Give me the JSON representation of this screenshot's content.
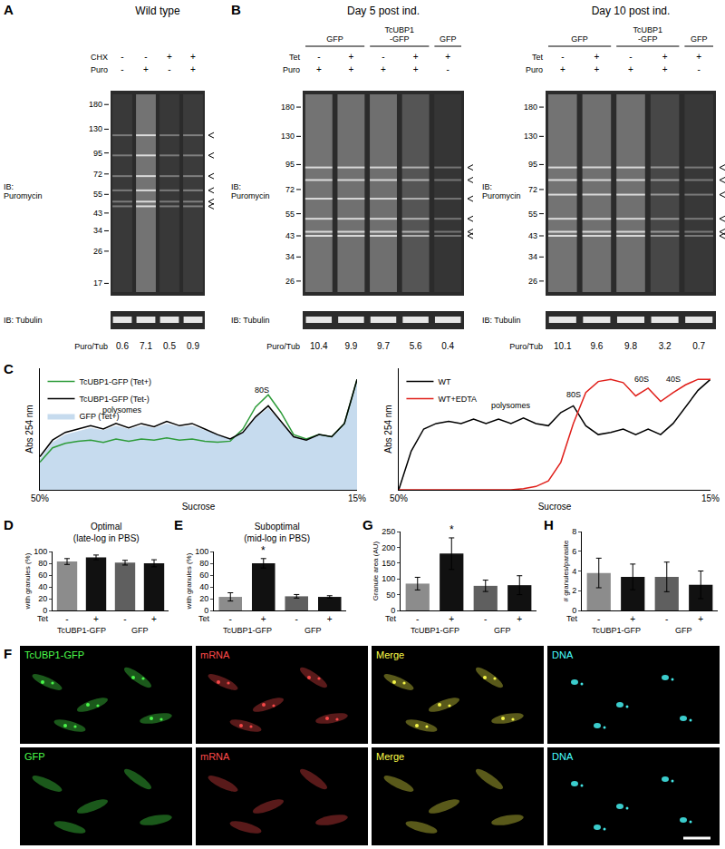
{
  "chart_data": [
    {
      "panel": "C",
      "type": "line",
      "x": [
        0,
        0.04,
        0.08,
        0.12,
        0.16,
        0.2,
        0.24,
        0.28,
        0.32,
        0.36,
        0.4,
        0.44,
        0.48,
        0.52,
        0.56,
        0.6,
        0.64,
        0.68,
        0.72,
        0.76,
        0.8,
        0.84,
        0.88,
        0.92,
        0.96,
        1
      ],
      "series": [
        {
          "name": "TcUBP1-GFP (Tet+)",
          "color": "#2e9c3a",
          "values": [
            0.25,
            0.38,
            0.42,
            0.44,
            0.45,
            0.43,
            0.46,
            0.44,
            0.46,
            0.45,
            0.47,
            0.45,
            0.46,
            0.44,
            0.43,
            0.44,
            0.55,
            0.75,
            0.86,
            0.7,
            0.5,
            0.46,
            0.5,
            0.48,
            0.6,
            1.0
          ]
        },
        {
          "name": "TcUBP1-GFP (Tet-)",
          "color": "#000000",
          "values": [
            0.3,
            0.45,
            0.52,
            0.55,
            0.58,
            0.55,
            0.6,
            0.56,
            0.6,
            0.57,
            0.62,
            0.58,
            0.6,
            0.55,
            0.5,
            0.46,
            0.52,
            0.66,
            0.76,
            0.62,
            0.48,
            0.45,
            0.5,
            0.48,
            0.6,
            1.0
          ]
        },
        {
          "name": "GFP (Tet+)",
          "color": "#c6dbee",
          "type": "area",
          "values": [
            0.28,
            0.43,
            0.5,
            0.53,
            0.56,
            0.54,
            0.58,
            0.55,
            0.58,
            0.56,
            0.6,
            0.57,
            0.58,
            0.54,
            0.5,
            0.46,
            0.52,
            0.65,
            0.74,
            0.61,
            0.48,
            0.45,
            0.5,
            0.48,
            0.6,
            1.0
          ]
        }
      ],
      "xlabel": "Sucrose",
      "ylabel": "Abs 254 nm",
      "xlim": [
        0,
        1
      ],
      "xticks": [
        {
          "value": 0,
          "label": "50%"
        },
        {
          "value": 1,
          "label": "15%"
        }
      ],
      "ylim": [
        0,
        1.1
      ],
      "tick_labels": "x",
      "legend": "top-left",
      "annotations": [
        {
          "text": "polysomes",
          "x": 0.26,
          "y": 0.72
        },
        {
          "text": "80S",
          "x": 0.7,
          "y": 0.9
        }
      ]
    },
    {
      "type": "line",
      "x": [
        0,
        0.04,
        0.08,
        0.12,
        0.16,
        0.2,
        0.24,
        0.28,
        0.32,
        0.36,
        0.4,
        0.44,
        0.48,
        0.52,
        0.56,
        0.6,
        0.64,
        0.68,
        0.72,
        0.76,
        0.8,
        0.84,
        0.88,
        0.92,
        0.96,
        1
      ],
      "series": [
        {
          "name": "WT",
          "color": "#000000",
          "values": [
            0.0,
            0.35,
            0.55,
            0.6,
            0.62,
            0.6,
            0.64,
            0.6,
            0.64,
            0.6,
            0.65,
            0.6,
            0.58,
            0.7,
            0.76,
            0.58,
            0.5,
            0.52,
            0.55,
            0.5,
            0.55,
            0.5,
            0.6,
            0.75,
            0.9,
            1.0
          ]
        },
        {
          "name": "WT+EDTA",
          "color": "#e0201b",
          "values": [
            0,
            0,
            0,
            0,
            0,
            0,
            0,
            0,
            0,
            0,
            0.01,
            0.03,
            0.08,
            0.25,
            0.6,
            0.88,
            0.98,
            1.0,
            0.97,
            0.85,
            0.92,
            0.8,
            0.88,
            0.95,
            1.0,
            1.0
          ]
        }
      ],
      "xlabel": "Sucrose",
      "ylabel": "Abs 254 nm",
      "xlim": [
        0,
        1
      ],
      "xticks": [
        {
          "value": 0,
          "label": "50%"
        },
        {
          "value": 1,
          "label": "15%"
        }
      ],
      "ylim": [
        0,
        1.1
      ],
      "tick_labels": "x",
      "legend": "top-left",
      "annotations": [
        {
          "text": "polysomes",
          "x": 0.36,
          "y": 0.76
        },
        {
          "text": "80S",
          "x": 0.56,
          "y": 0.86
        },
        {
          "text": "60S",
          "x": 0.78,
          "y": 1.0
        },
        {
          "text": "40S",
          "x": 0.88,
          "y": 1.0
        }
      ]
    },
    {
      "panel": "D",
      "type": "bar",
      "title": "Optimal\n(late-log in PBS)",
      "ylabel": "with granules (%)",
      "xlabel": "Tet",
      "categories": [
        "-",
        "+",
        "-",
        "+"
      ],
      "groups": [
        "TcUBP1-GFP",
        "GFP"
      ],
      "values": [
        83,
        90,
        81,
        80
      ],
      "errors": [
        5,
        4,
        4,
        6
      ],
      "colors": [
        "#8c8c8c",
        "#111111",
        "#5f5f5f",
        "#111111"
      ],
      "ylim": [
        0,
        100
      ],
      "yticks": [
        0,
        20,
        40,
        60,
        80,
        100
      ]
    },
    {
      "panel": "E",
      "type": "bar",
      "title": "Suboptimal\n(mid-log in PBS)",
      "ylabel": "with granules (%)",
      "xlabel": "Tet",
      "categories": [
        "-",
        "+",
        "-",
        "+"
      ],
      "groups": [
        "TcUBP1-GFP",
        "GFP"
      ],
      "values": [
        23,
        80,
        24,
        23
      ],
      "errors": [
        7,
        8,
        3,
        2
      ],
      "colors": [
        "#8c8c8c",
        "#111111",
        "#5f5f5f",
        "#111111"
      ],
      "ylim": [
        0,
        100
      ],
      "yticks": [
        0,
        20,
        40,
        60,
        80,
        100
      ],
      "annotations": [
        {
          "text": "*",
          "index": 1
        }
      ]
    },
    {
      "panel": "G",
      "type": "bar",
      "ylabel": "Granule area (AU)",
      "xlabel": "Tet",
      "categories": [
        "-",
        "+",
        "-",
        "+"
      ],
      "groups": [
        "TcUBP1-GFP",
        "GFP"
      ],
      "values": [
        85,
        180,
        78,
        80
      ],
      "errors": [
        20,
        50,
        18,
        30
      ],
      "colors": [
        "#8c8c8c",
        "#111111",
        "#5f5f5f",
        "#111111"
      ],
      "ylim": [
        0,
        250
      ],
      "yticks": [
        0,
        50,
        100,
        150,
        200,
        250
      ],
      "annotations": [
        {
          "text": "*",
          "index": 1
        }
      ]
    },
    {
      "panel": "H",
      "type": "bar",
      "ylabel": "# granules/parasite",
      "xlabel": "Tet",
      "categories": [
        "-",
        "+",
        "-",
        "+"
      ],
      "groups": [
        "TcUBP1-GFP",
        "GFP"
      ],
      "values": [
        3.8,
        3.4,
        3.4,
        2.6
      ],
      "errors": [
        1.5,
        1.3,
        1.5,
        1.4
      ],
      "colors": [
        "#8c8c8c",
        "#111111",
        "#5f5f5f",
        "#111111"
      ],
      "ylim": [
        0,
        8
      ],
      "yticks": [
        0,
        2,
        4,
        6,
        8
      ]
    }
  ],
  "blots": [
    {
      "panel": "A",
      "title": "Wild type",
      "rows": [
        {
          "label": "CHX",
          "values": [
            "-",
            "-",
            "+",
            "+"
          ]
        },
        {
          "label": "Puro",
          "values": [
            "-",
            "+",
            "-",
            "+"
          ]
        }
      ],
      "markers": [
        180,
        130,
        95,
        72,
        55,
        43,
        34,
        26,
        17
      ],
      "arrowheads": [
        120,
        92,
        70,
        58,
        50,
        47
      ],
      "probe": "IB:\nPuromycin",
      "loading": "IB: Tubulin",
      "ratio_label": "Puro/Tub",
      "ratios": [
        0.6,
        7.1,
        0.5,
        0.9
      ]
    },
    {
      "panel": "B",
      "title": "Day 5 post ind.",
      "groups": [
        {
          "label": "GFP",
          "lanes": 2
        },
        {
          "label": "TcUBP1\n-GFP",
          "lanes": 2
        },
        {
          "label": "GFP",
          "lanes": 1
        }
      ],
      "rows": [
        {
          "label": "Tet",
          "values": [
            "-",
            "+",
            "-",
            "+",
            "+"
          ]
        },
        {
          "label": "Puro",
          "values": [
            "+",
            "+",
            "+",
            "+",
            "-"
          ]
        }
      ],
      "markers": [
        180,
        130,
        95,
        72,
        55,
        43,
        34,
        26
      ],
      "arrowheads": [
        92,
        80,
        65,
        52,
        45,
        43
      ],
      "probe": "IB:\nPuromycin",
      "loading": "IB: Tubulin",
      "ratio_label": "Puro/Tub",
      "ratios": [
        10.4,
        9.9,
        9.7,
        5.6,
        0.4
      ]
    },
    {
      "title": "Day 10 post ind.",
      "groups": [
        {
          "label": "GFP",
          "lanes": 2
        },
        {
          "label": "TcUBP1\n-GFP",
          "lanes": 2
        },
        {
          "label": "GFP",
          "lanes": 1
        }
      ],
      "rows": [
        {
          "label": "Tet",
          "values": [
            "-",
            "+",
            "-",
            "+",
            "+"
          ]
        },
        {
          "label": "Puro",
          "values": [
            "+",
            "+",
            "+",
            "+",
            "-"
          ]
        }
      ],
      "markers": [
        180,
        130,
        95,
        72,
        55,
        43,
        34,
        26
      ],
      "arrowheads": [
        92,
        80,
        68,
        52,
        45,
        43
      ],
      "probe": "IB:\nPuromycin",
      "loading": "IB: Tubulin",
      "ratio_label": "Puro/Tub",
      "ratios": [
        10.1,
        9.6,
        9.8,
        3.2,
        0.7
      ]
    }
  ],
  "micrographs": {
    "panel": "F",
    "rows": [
      [
        "TcUBP1-GFP",
        "mRNA",
        "Merge",
        "DNA"
      ],
      [
        "GFP",
        "mRNA",
        "Merge",
        "DNA"
      ]
    ]
  }
}
